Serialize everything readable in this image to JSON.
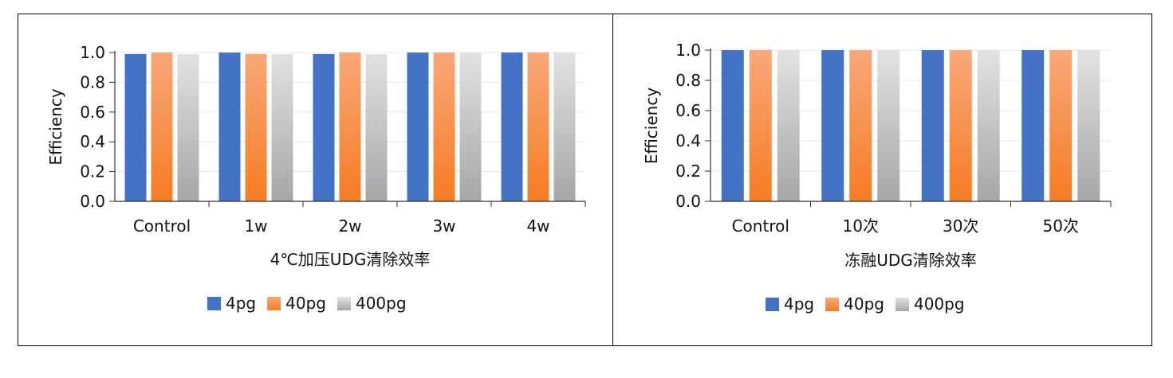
{
  "colors": {
    "4pg": "#4472c4",
    "40pg_top": "#f8a878",
    "40pg_bottom": "#f67c22",
    "400pg_top": "#e2e2e2",
    "400pg_bottom": "#a6a6a6",
    "axis": "#333333",
    "grid": "#e8e8e8"
  },
  "chart_data": [
    {
      "type": "bar",
      "xlabel": "4℃加压UDG清除效率",
      "ylabel": "Efficiency",
      "ylim": [
        0,
        1.0
      ],
      "yticks": [
        "0.0",
        "0.2",
        "0.4",
        "0.6",
        "0.8",
        "1.0"
      ],
      "categories": [
        "Control",
        "1w",
        "2w",
        "3w",
        "4w"
      ],
      "series": [
        {
          "name": "4pg",
          "values": [
            0.99,
            1.0,
            0.99,
            1.0,
            1.0
          ]
        },
        {
          "name": "40pg",
          "values": [
            1.0,
            0.99,
            1.0,
            1.0,
            1.0
          ]
        },
        {
          "name": "400pg",
          "values": [
            0.99,
            0.99,
            0.99,
            1.0,
            1.0
          ]
        }
      ],
      "legend": "bottom",
      "grid": true
    },
    {
      "type": "bar",
      "xlabel": "冻融UDG清除效率",
      "ylabel": "Efficiency",
      "ylim": [
        0,
        1.0
      ],
      "yticks": [
        "0.0",
        "0.2",
        "0.4",
        "0.6",
        "0.8",
        "1.0"
      ],
      "categories": [
        "Control",
        "10次",
        "30次",
        "50次"
      ],
      "series": [
        {
          "name": "4pg",
          "values": [
            1.0,
            1.0,
            1.0,
            1.0
          ]
        },
        {
          "name": "40pg",
          "values": [
            1.0,
            1.0,
            1.0,
            1.0
          ]
        },
        {
          "name": "400pg",
          "values": [
            1.0,
            1.0,
            1.0,
            1.0
          ]
        }
      ],
      "legend": "bottom",
      "grid": true
    }
  ]
}
